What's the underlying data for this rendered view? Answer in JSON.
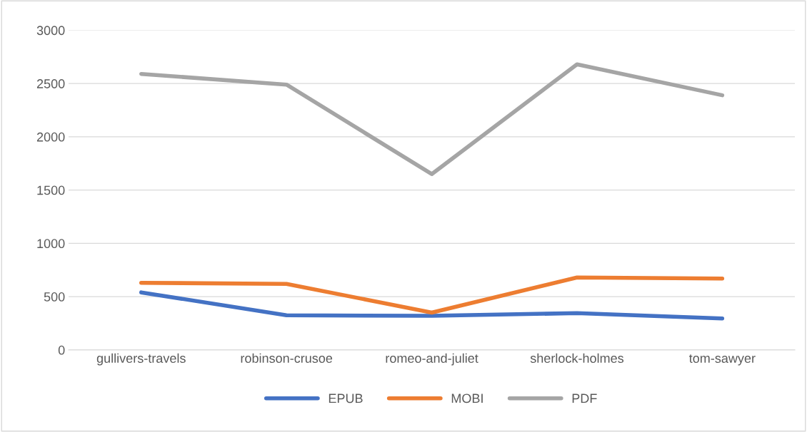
{
  "chart_data": {
    "type": "line",
    "categories": [
      "gullivers-travels",
      "robinson-crusoe",
      "romeo-and-juliet",
      "sherlock-holmes",
      "tom-sawyer"
    ],
    "series": [
      {
        "name": "EPUB",
        "color": "#4472c4",
        "values": [
          540,
          325,
          320,
          345,
          295
        ]
      },
      {
        "name": "MOBI",
        "color": "#ed7d31",
        "values": [
          630,
          620,
          350,
          680,
          670
        ]
      },
      {
        "name": "PDF",
        "color": "#a5a5a5",
        "values": [
          2590,
          2490,
          1650,
          2680,
          2390
        ]
      }
    ],
    "ylim": [
      0,
      3000
    ],
    "yticks": [
      0,
      500,
      1000,
      1500,
      2000,
      2500,
      3000
    ],
    "grid": "y",
    "legend": "bottom",
    "marker": "none",
    "line_style": "solid"
  }
}
